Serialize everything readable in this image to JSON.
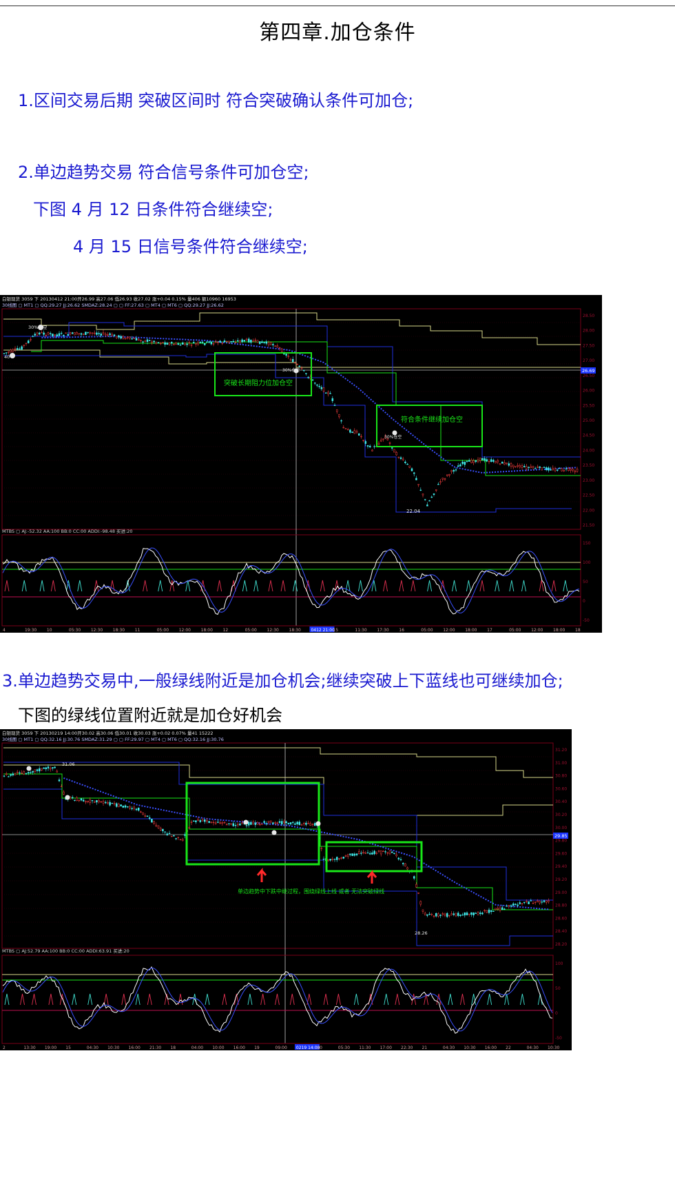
{
  "title": "第四章.加仓条件",
  "paragraphs": {
    "p1": "1.区间交易后期 突破区间时 符合突破确认条件可加仓;",
    "p2": "2.单边趋势交易 符合信号条件可加仓空;",
    "p2a": "下图 4 月 12 日条件符合继续空;",
    "p2b": "4 月 15 日信号条件符合继续空;",
    "p3": "3.单边趋势交易中,一般绿线附近是加仓机会;继续突破上下蓝线也可继续加仓;",
    "p3a": "下图的绿线位置附近就是加仓好机会"
  },
  "chart1": {
    "header1": "白银现货 3059 下 20130412 21:00开26.99 高27.06 低26.93 收27.02 涨+0.04 0.15% 量406 额10960 16953",
    "header2": "30线图 ▢ MT1 ▢ QQ:29.27 JJ:26.62 SMDAZ:28.24 ▢ ▢ FF:27.63 ▢ MT4 ▢ MT6 ▢ QQ:29.27 JJ:26.62",
    "ind_header": "MTBS ▢ AJ:-52.32 AA:100 BB:0 CC:00 ADDI:-98.48 买进:20",
    "annotation1": "突破长期阻力位加仓空",
    "annotation2": "符合条件继续加仓空",
    "low_label": "22.04",
    "price_tag": "26.69",
    "marker_a": "30%仓空",
    "marker_b": "40",
    "marker_c": "30%仓空",
    "marker_d": "30%仓空",
    "right_axis": [
      "28.50",
      "28.00",
      "27.50",
      "27.00",
      "26.50",
      "26.00",
      "25.50",
      "25.00",
      "24.50",
      "24.00",
      "23.50",
      "23.00",
      "22.50",
      "22.00",
      "21.50"
    ],
    "ind_axis": [
      "150",
      "100",
      "50",
      "0",
      "-50"
    ],
    "time_axis": [
      "4",
      "19:30",
      "10",
      "05:30",
      "12:30",
      "18:30",
      "11",
      "05:00",
      "12:00",
      "18:00",
      "12",
      "05:00",
      "12:30",
      "18:30",
      "0412 21:00",
      "15",
      "11:30",
      "17:30",
      "16",
      "05:00",
      "12:00",
      "18:00",
      "17",
      "05:00",
      "12:00",
      "18:00",
      "18"
    ],
    "colors": {
      "green": "#19e619",
      "blue": "#2030e0",
      "yellow": "#d8d88a",
      "red": "#a00020",
      "cyan": "#40e0e0"
    }
  },
  "chart2": {
    "header1": "白银现货 3059 下 20130219 14:00开30.02 高30.06 低30.01 收30.03 涨+0.02 0.07% 量41 15222",
    "header2": "30线图 ▢ MT1 ▢ QQ:32.16 JJ:30.76 SMDAZ:31.29 ▢ ▢ FF:29.97 ▢ MT4 ▢ MT6 ▢ QQ:32.16 JJ:30.76",
    "ind_header": "MTBS ▢ AJ:52.79 AA:100 BB:0 CC:00 ADDI:63.91 买进:20",
    "annotation": "单边趋势中下跌中继过程，围绕绿线上线   或者 无法突破绿线",
    "label_high": "31.06",
    "label_low": "28.26",
    "price_tag": "29.85",
    "right_axis": [
      "31.20",
      "31.00",
      "30.80",
      "30.60",
      "30.40",
      "30.20",
      "30.00",
      "29.80",
      "29.60",
      "29.40",
      "29.20",
      "29.00",
      "28.80",
      "28.60",
      "28.40",
      "28.20"
    ],
    "ind_axis": [
      "100",
      "50",
      "0",
      "-50"
    ],
    "time_axis": [
      "2",
      "13:30",
      "19:00",
      "15",
      "04:30",
      "10:30",
      "16:00",
      "21:30",
      "18",
      "04:00",
      "10:00",
      "16:00",
      "19",
      "09:00",
      "0219 14:00",
      "20",
      "05:30",
      "11:30",
      "17:00",
      "22:30",
      "21",
      "04:30",
      "10:30",
      "16:00",
      "22",
      "04:30",
      "10:30"
    ]
  }
}
